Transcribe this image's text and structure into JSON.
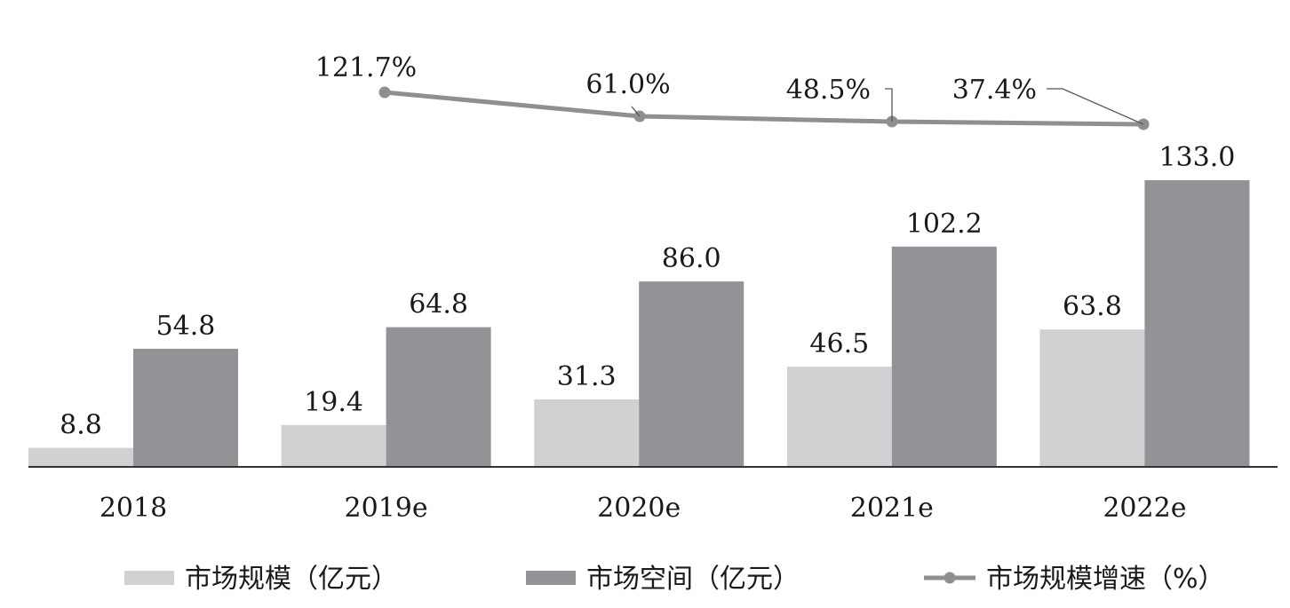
{
  "chart_data": {
    "type": "bar",
    "categories": [
      "2018",
      "2019e",
      "2020e",
      "2021e",
      "2022e"
    ],
    "series": [
      {
        "name": "市场规模（亿元）",
        "kind": "bar",
        "color": "#d0d1d3",
        "values": [
          8.8,
          19.4,
          31.3,
          46.5,
          63.8
        ],
        "labels": [
          "8.8",
          "19.4",
          "31.3",
          "46.5",
          "63.8"
        ]
      },
      {
        "name": "市场空间（亿元）",
        "kind": "bar",
        "color": "#929396",
        "values": [
          54.8,
          64.8,
          86.0,
          102.2,
          133.0
        ],
        "labels": [
          "54.8",
          "64.8",
          "86.0",
          "102.2",
          "133.0"
        ]
      },
      {
        "name": "市场规模增速（%）",
        "kind": "line",
        "color": "#8e8f92",
        "values": [
          null,
          121.7,
          61.0,
          48.5,
          37.4
        ],
        "labels": [
          "",
          "121.7%",
          "61.0%",
          "48.5%",
          "37.4%"
        ]
      }
    ],
    "title": "",
    "xlabel": "",
    "ylabel": "",
    "ylim": [
      0,
      140
    ],
    "grid": false,
    "legend_position": "bottom"
  },
  "legend": [
    {
      "label": "市场规模（亿元）",
      "swatch": "bar",
      "color": "#d0d1d3"
    },
    {
      "label": "市场空间（亿元）",
      "swatch": "bar",
      "color": "#929396"
    },
    {
      "label": "市场规模增速（%）",
      "swatch": "line",
      "color": "#8e8f92"
    }
  ]
}
